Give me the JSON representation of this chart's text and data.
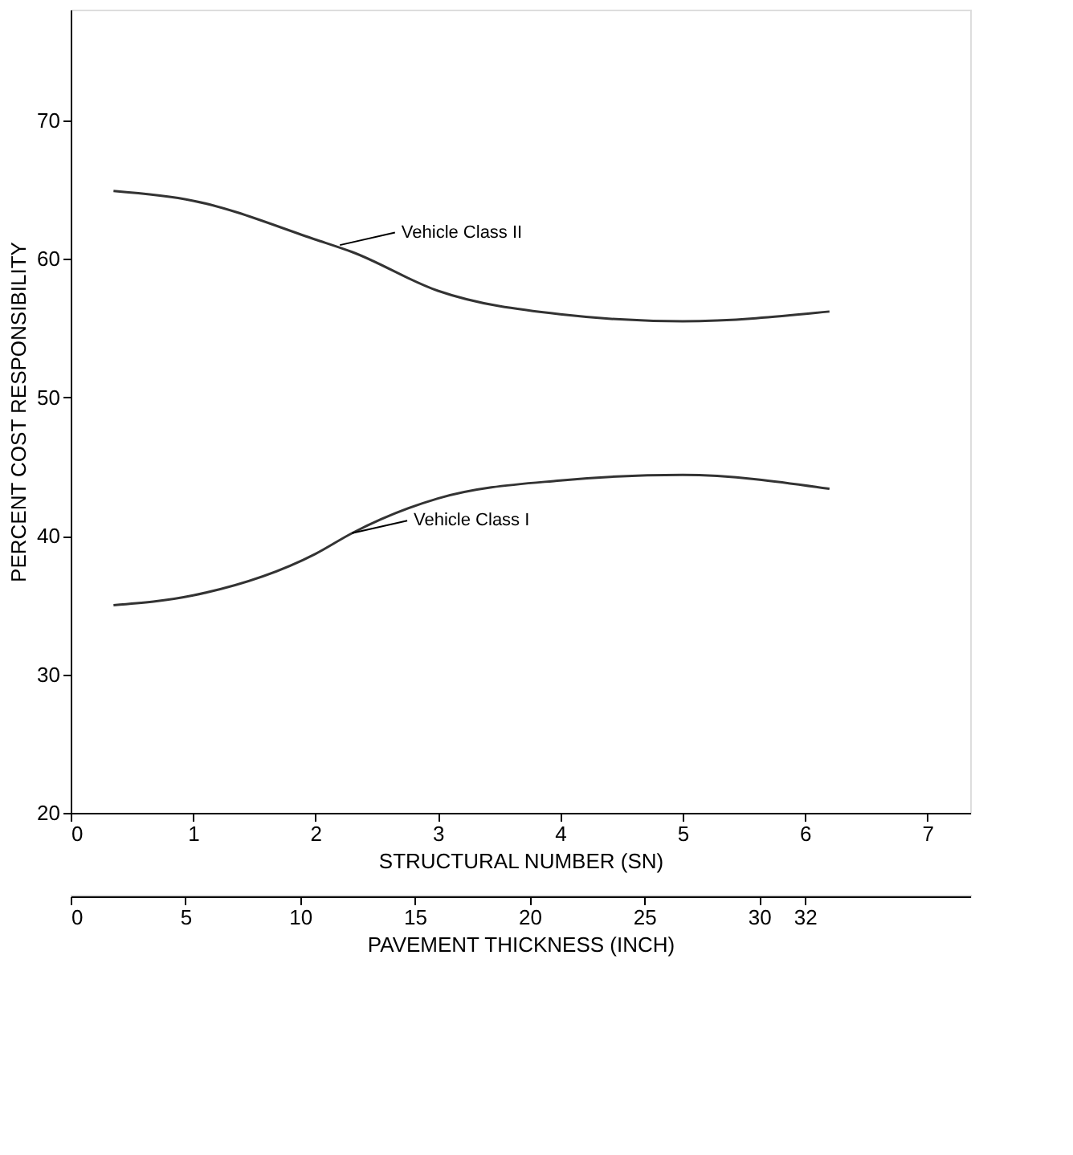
{
  "chart_data": {
    "type": "line",
    "xlabel": "STRUCTURAL NUMBER (SN)",
    "ylabel": "PERCENT COST RESPONSIBILITY",
    "x2label": "PAVEMENT THICKNESS (INCH)",
    "xlim": [
      0,
      7.35
    ],
    "xticks": [
      0,
      1,
      2,
      3,
      4,
      5,
      6,
      7
    ],
    "ylim": [
      20,
      78
    ],
    "yticks": [
      20,
      30,
      40,
      50,
      60,
      70
    ],
    "x2lim": [
      0,
      39.2
    ],
    "x2ticks": [
      0,
      5,
      10,
      15,
      20,
      25,
      30,
      32
    ],
    "series": [
      {
        "color": "#333333",
        "x": [
          0.35,
          1,
          2,
          2.3,
          3,
          4,
          5,
          6.2
        ],
        "values": [
          64.9,
          64.2,
          61.4,
          60.5,
          57.7,
          56.0,
          55.5,
          56.2
        ]
      },
      {
        "color": "#333333",
        "x": [
          0.35,
          1,
          2,
          2.3,
          3,
          4,
          5,
          6.2
        ],
        "values": [
          35.0,
          35.7,
          38.7,
          40.2,
          42.7,
          44.0,
          44.4,
          43.4
        ]
      }
    ],
    "annotations": [
      {
        "text": "Vehicle Class II",
        "x": 2.2,
        "y": 61.0
      },
      {
        "text": "Vehicle Class I",
        "x": 2.3,
        "y": 40.2
      }
    ],
    "grid": false,
    "legend": false,
    "marker": "none",
    "line_style": "solid"
  }
}
